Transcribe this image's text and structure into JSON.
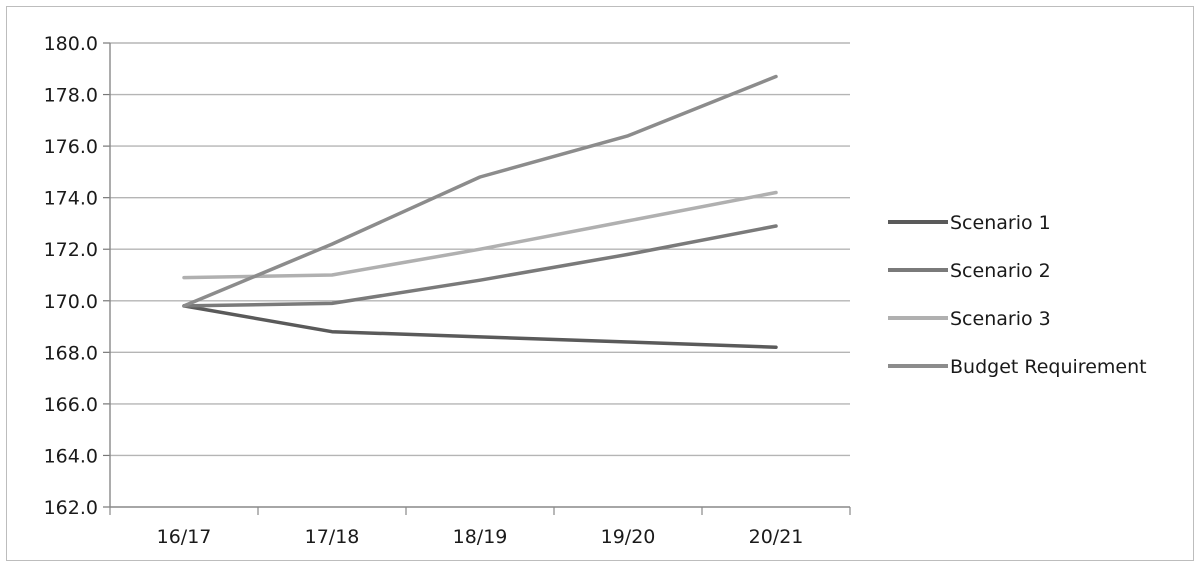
{
  "chart_data": {
    "type": "line",
    "categories": [
      "16/17",
      "17/18",
      "18/19",
      "19/20",
      "20/21"
    ],
    "ylim": [
      162.0,
      180.0
    ],
    "yticks": [
      162.0,
      164.0,
      166.0,
      168.0,
      170.0,
      172.0,
      174.0,
      176.0,
      178.0,
      180.0
    ],
    "ytick_labels": [
      "162.0",
      "164.0",
      "166.0",
      "168.0",
      "170.0",
      "172.0",
      "174.0",
      "176.0",
      "178.0",
      "180.0"
    ],
    "grid": true,
    "legend_position": "right",
    "series": [
      {
        "name": "Scenario 1",
        "values": [
          169.8,
          168.8,
          168.6,
          168.4,
          168.2
        ],
        "color": "#5a5a5a"
      },
      {
        "name": "Scenario 2",
        "values": [
          169.8,
          169.9,
          170.8,
          171.8,
          172.9
        ],
        "color": "#7a7a7a"
      },
      {
        "name": "Scenario 3",
        "values": [
          170.9,
          171.0,
          172.0,
          173.1,
          174.2
        ],
        "color": "#b0b0b0"
      },
      {
        "name": "Budget Requirement",
        "values": [
          169.8,
          172.2,
          174.8,
          176.4,
          178.7
        ],
        "color": "#8c8c8c"
      }
    ]
  }
}
